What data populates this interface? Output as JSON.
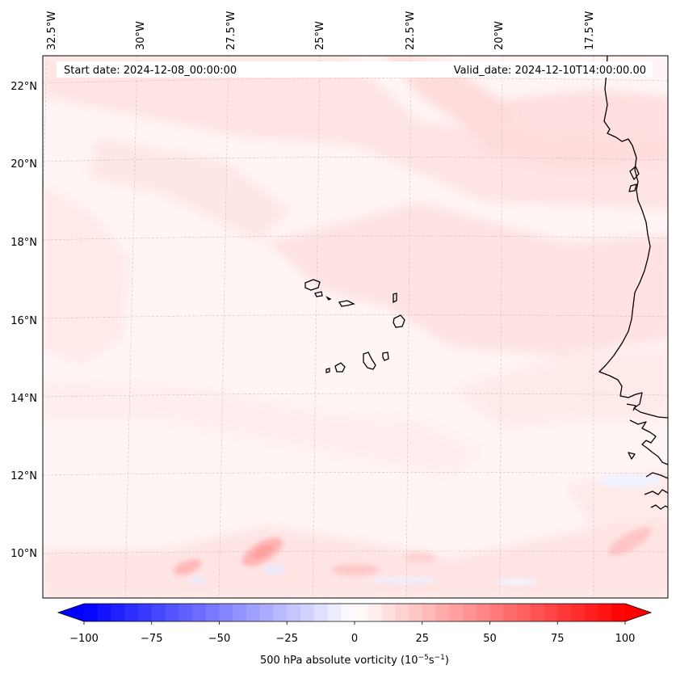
{
  "map": {
    "start_date": "Start date: 2024-12-08_00:00:00",
    "valid_date": "Valid_date: 2024-12-10T14:00:00.00",
    "longitude_labels": [
      "32.5°W",
      "30°W",
      "27.5°W",
      "25°W",
      "22.5°W",
      "20°W",
      "17.5°W"
    ],
    "latitude_labels": [
      "22°N",
      "20°N",
      "18°N",
      "16°N",
      "14°N",
      "12°N",
      "10°N"
    ],
    "field": "500 hPa absolute vorticity",
    "units_prefix": "(10",
    "units_exp1": "−5",
    "units_mid": "s",
    "units_exp2": "−1",
    "units_suffix": ")",
    "land_features": [
      "West African coastline",
      "Cape Verde islands"
    ]
  },
  "colorbar": {
    "ticks": [
      "−100",
      "−75",
      "−50",
      "−25",
      "0",
      "25",
      "50",
      "75",
      "100"
    ],
    "min": -100,
    "max": 100,
    "extend": "both",
    "colormap": "bwr",
    "low_color": "#0000ff",
    "mid_color": "#ffffff",
    "high_color": "#ff0000"
  },
  "colors": {
    "background_field": "#fff5f5",
    "gridline": "#bbbbbb",
    "coastline": "#000000"
  }
}
